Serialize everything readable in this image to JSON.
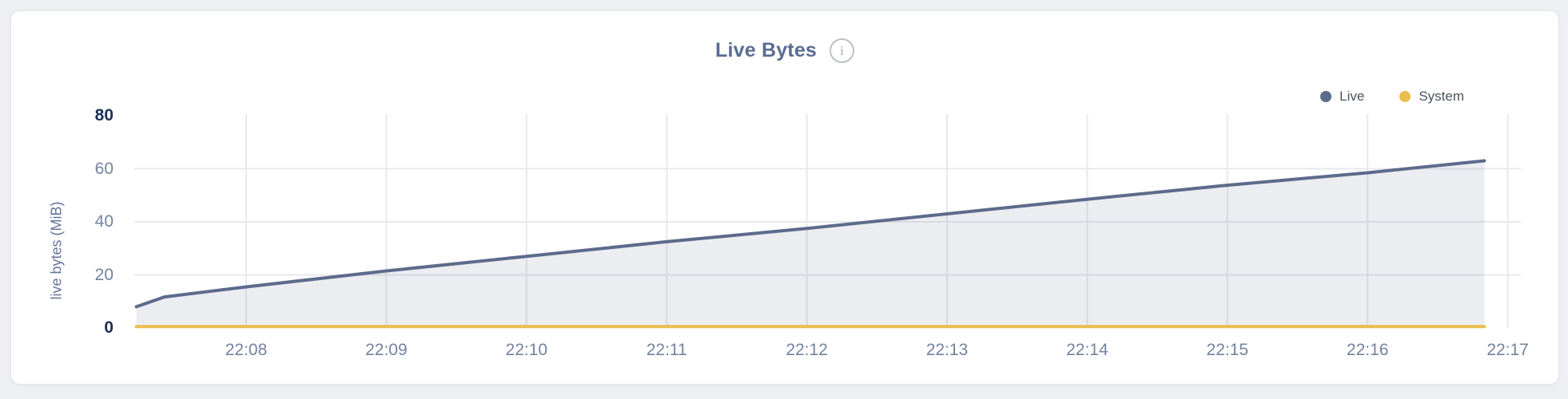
{
  "page": {
    "background": "#edeff3",
    "card_background": "#ffffff"
  },
  "header": {
    "title": "Live Bytes",
    "info_icon_glyph": "i"
  },
  "legend": [
    {
      "label": "Live",
      "color": "#5c6b8b"
    },
    {
      "label": "System",
      "color": "#e9bd4f"
    }
  ],
  "colors": {
    "live_line": "#5c6b8b",
    "live_fill": "rgba(95,110,142,0.12)",
    "system_line": "#e9bd4f",
    "gridline": "#e8e9ec",
    "tick_label": "#74839f",
    "tick_label_emphasized": "#1b3156",
    "title": "#5a6c91"
  },
  "chart_data": {
    "type": "area",
    "title": "Live Bytes",
    "ylabel": "live bytes (MiB)",
    "xlabel": "",
    "ylim": [
      0,
      80
    ],
    "y_ticks": [
      0,
      20,
      40,
      60,
      80
    ],
    "y_ticks_emphasized": [
      0,
      80
    ],
    "x_ticks": [
      "22:08",
      "22:09",
      "22:10",
      "22:11",
      "22:12",
      "22:13",
      "22:14",
      "22:15",
      "22:16",
      "22:17"
    ],
    "x_range": [
      "22:07:13",
      "22:17:00"
    ],
    "grid": true,
    "legend_position": "top-right",
    "series": [
      {
        "name": "Live",
        "color": "#5c6b8b",
        "fill": "rgba(95,110,142,0.12)",
        "points": [
          [
            "22:07:13",
            8.0
          ],
          [
            "22:07:25",
            11.7
          ],
          [
            "22:08:00",
            15.5
          ],
          [
            "22:09:00",
            21.5
          ],
          [
            "22:10:00",
            27.0
          ],
          [
            "22:11:00",
            32.5
          ],
          [
            "22:12:00",
            37.5
          ],
          [
            "22:13:00",
            43.0
          ],
          [
            "22:14:00",
            48.5
          ],
          [
            "22:15:00",
            53.8
          ],
          [
            "22:16:00",
            58.5
          ],
          [
            "22:16:50",
            63.0
          ]
        ]
      },
      {
        "name": "System",
        "color": "#e9bd4f",
        "points": [
          [
            "22:07:13",
            0.5
          ],
          [
            "22:16:50",
            0.5
          ]
        ]
      }
    ]
  }
}
